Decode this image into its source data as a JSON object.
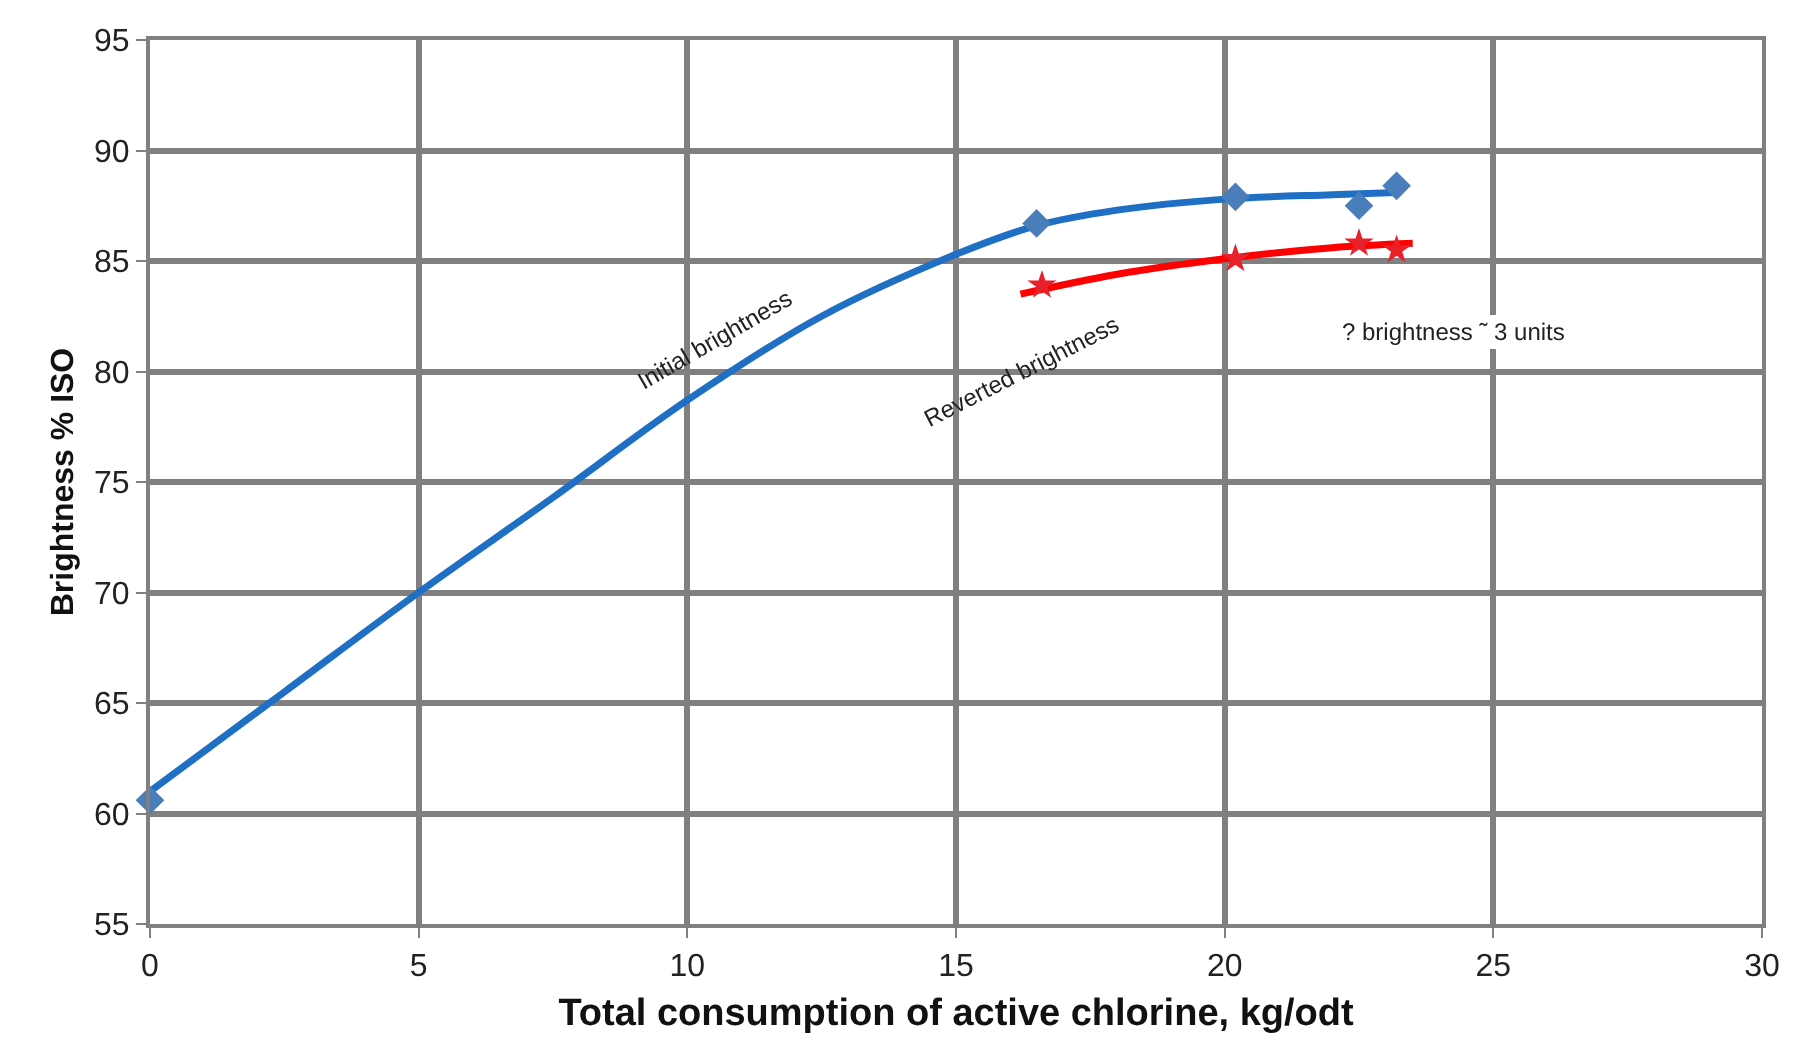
{
  "chart_data": {
    "type": "scatter",
    "xlabel": "Total consumption of active chlorine, kg/odt",
    "ylabel": "Brightness % ISO",
    "xlim": [
      0,
      30
    ],
    "xticks": [
      0,
      5,
      10,
      15,
      20,
      25,
      30
    ],
    "ylim": [
      55,
      95
    ],
    "yticks": [
      55,
      60,
      65,
      70,
      75,
      80,
      85,
      90,
      95
    ],
    "grid": true,
    "series": [
      {
        "type": "line",
        "color": "#1f6fc5",
        "marker": "none",
        "x": [
          0,
          2.5,
          5,
          7.5,
          10,
          12.5,
          15,
          16.5,
          18,
          20,
          22,
          23.2
        ],
        "values": [
          61,
          65.5,
          70,
          74.3,
          78.7,
          82.5,
          85.3,
          86.6,
          87.3,
          87.8,
          88.0,
          88.1
        ]
      },
      {
        "type": "line",
        "color": "#ff0000",
        "marker": "none",
        "x": [
          16.2,
          18,
          20,
          22,
          23.5
        ],
        "values": [
          83.5,
          84.4,
          85.1,
          85.6,
          85.8
        ]
      },
      {
        "color": "#4a7ebb",
        "marker": "diamond",
        "x": [
          0,
          16.5,
          20.2,
          22.5,
          23.2
        ],
        "values": [
          60.6,
          86.7,
          87.9,
          87.5,
          88.4
        ]
      },
      {
        "color": "#e8202a",
        "marker": "star",
        "x": [
          16.6,
          20.2,
          22.5,
          23.2
        ],
        "values": [
          83.9,
          85.1,
          85.8,
          85.5
        ]
      }
    ],
    "annotations": [
      "Initial brightness",
      "Reverted brightness",
      "? brightness ˜ 3 units"
    ]
  }
}
